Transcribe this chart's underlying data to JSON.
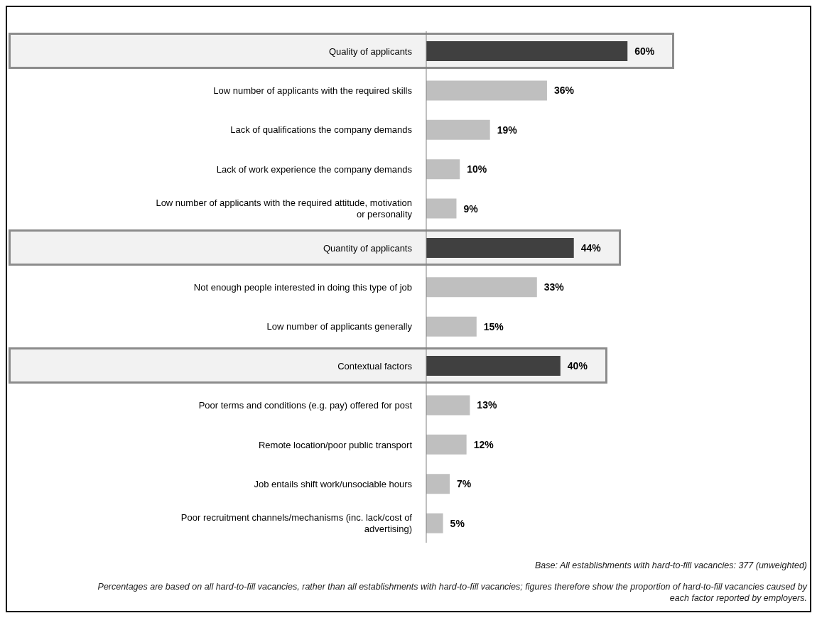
{
  "chart_data": {
    "type": "bar",
    "orientation": "horizontal",
    "categories": [
      "Quality of applicants",
      "Low number of applicants with the required skills",
      "Lack of qualifications the company demands",
      "Lack of work experience the company demands",
      "Low number of applicants with the required attitude, motivation or personality",
      "Quantity of applicants",
      "Not enough people interested in doing this type of job",
      "Low number of applicants generally",
      "Contextual factors",
      "Poor terms and conditions (e.g. pay) offered for post",
      "Remote location/poor public transport",
      "Job entails shift work/unsociable hours",
      "Poor recruitment channels/mechanisms (inc. lack/cost of advertising)"
    ],
    "values": [
      60,
      36,
      19,
      10,
      9,
      44,
      33,
      15,
      40,
      13,
      12,
      7,
      5
    ],
    "value_labels": [
      "60%",
      "36%",
      "19%",
      "10%",
      "9%",
      "44%",
      "33%",
      "15%",
      "40%",
      "13%",
      "12%",
      "7%",
      "5%"
    ],
    "colors": [
      "#404040",
      "#bfbfbf",
      "#bfbfbf",
      "#bfbfbf",
      "#bfbfbf",
      "#404040",
      "#bfbfbf",
      "#bfbfbf",
      "#404040",
      "#bfbfbf",
      "#bfbfbf",
      "#bfbfbf",
      "#bfbfbf"
    ],
    "grid": false,
    "legend": false,
    "annotations": [
      "Base: All establishments with hard-to-fill vacancies: 377 (unweighted)",
      "Percentages are based on all hard-to-fill vacancies, rather than all establishments with hard-to-fill vacancies; figures therefore show the proportion of hard-to-fill vacancies caused by each factor reported by employers."
    ]
  }
}
